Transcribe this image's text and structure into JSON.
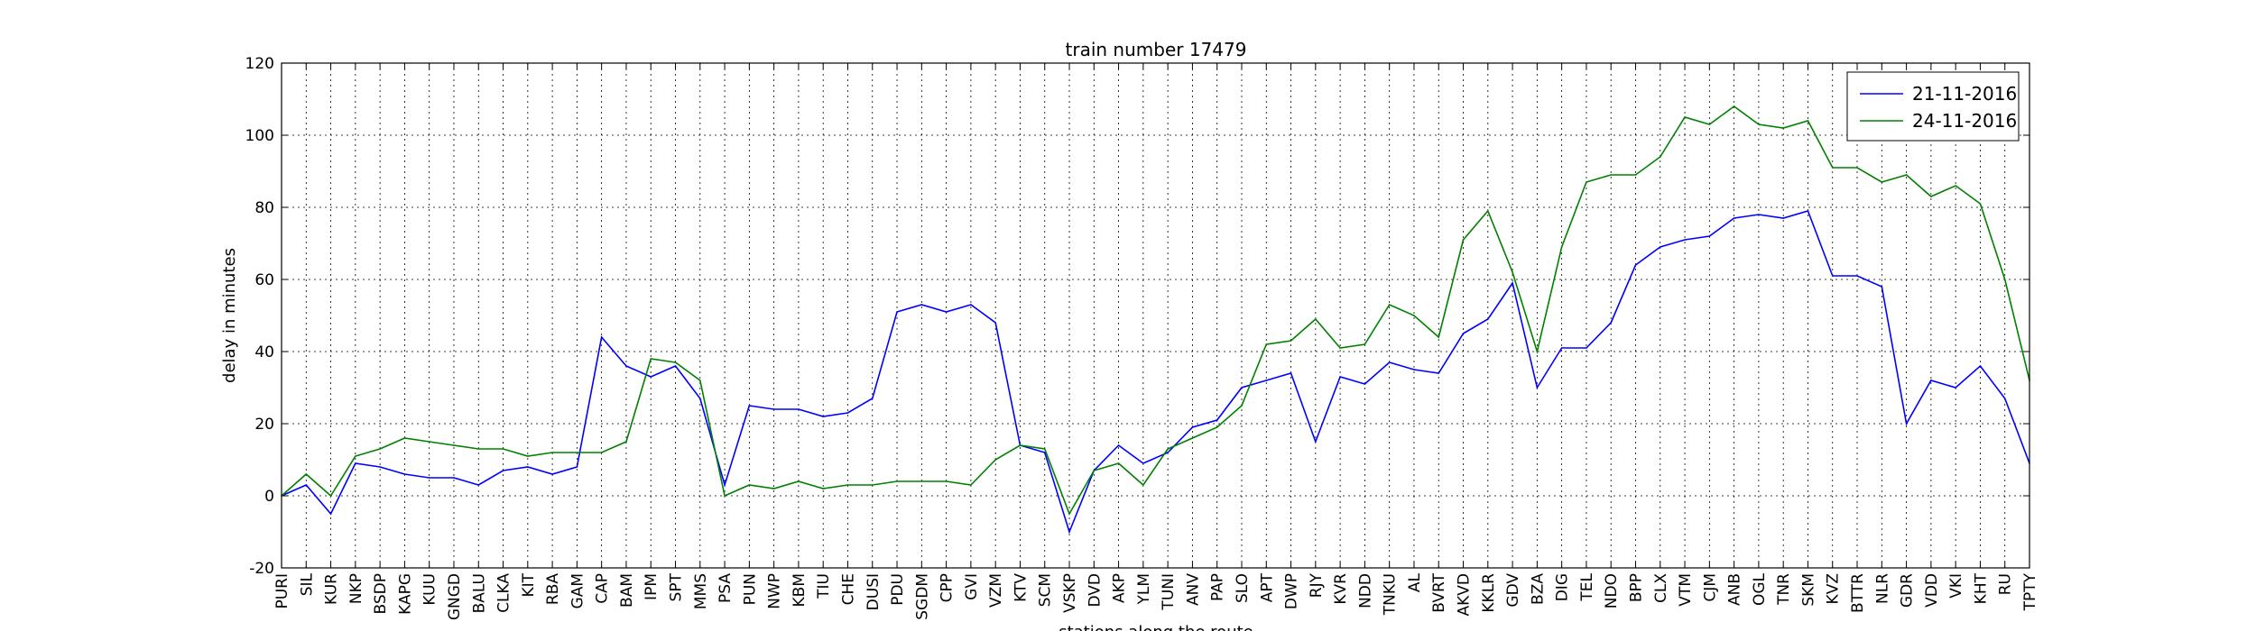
{
  "chart_data": {
    "type": "line",
    "title": "train number 17479",
    "xlabel": "stations along the route",
    "ylabel": "delay in minutes",
    "ylim": [
      -20,
      120
    ],
    "yticks": [
      -20,
      0,
      20,
      40,
      60,
      80,
      100,
      120
    ],
    "grid": true,
    "legend_position": "top-right",
    "categories": [
      "PURI",
      "SIL",
      "KUR",
      "NKP",
      "BSDP",
      "KAPG",
      "KUU",
      "GNGD",
      "BALU",
      "CLKA",
      "KIT",
      "RBA",
      "GAM",
      "CAP",
      "BAM",
      "IPM",
      "SPT",
      "MMS",
      "PSA",
      "PUN",
      "NWP",
      "KBM",
      "TIU",
      "CHE",
      "DUSI",
      "PDU",
      "SGDM",
      "CPP",
      "GVI",
      "VZM",
      "KTV",
      "SCM",
      "VSKP",
      "DVD",
      "AKP",
      "YLM",
      "TUNI",
      "ANV",
      "PAP",
      "SLO",
      "APT",
      "DWP",
      "RJY",
      "KVR",
      "NDD",
      "TNKU",
      "AL",
      "BVRT",
      "AKVD",
      "KKLR",
      "GDV",
      "BZA",
      "DIG",
      "TEL",
      "NDO",
      "BPP",
      "CLX",
      "VTM",
      "CJM",
      "ANB",
      "OGL",
      "TNR",
      "SKM",
      "KVZ",
      "BTTR",
      "NLR",
      "GDR",
      "VDD",
      "VKI",
      "KHT",
      "RU",
      "TPTY"
    ],
    "series": [
      {
        "name": "21-11-2016",
        "color": "#0000ff",
        "values": [
          0,
          3,
          -5,
          9,
          8,
          6,
          5,
          5,
          3,
          7,
          8,
          6,
          8,
          44,
          36,
          33,
          36,
          27,
          3,
          25,
          24,
          24,
          22,
          23,
          27,
          51,
          53,
          51,
          53,
          48,
          14,
          12,
          -10,
          7,
          14,
          9,
          12,
          19,
          21,
          30,
          32,
          34,
          15,
          33,
          31,
          37,
          35,
          34,
          45,
          49,
          59,
          30,
          41,
          41,
          48,
          64,
          69,
          71,
          72,
          77,
          78,
          77,
          79,
          61,
          61,
          58,
          20,
          32,
          30,
          36,
          27,
          9
        ]
      },
      {
        "name": "24-11-2016",
        "color": "#008000",
        "values": [
          0,
          6,
          0,
          11,
          13,
          16,
          15,
          14,
          13,
          13,
          11,
          12,
          12,
          12,
          15,
          38,
          37,
          32,
          0,
          3,
          2,
          4,
          2,
          3,
          3,
          4,
          4,
          4,
          3,
          10,
          14,
          13,
          -5,
          7,
          9,
          3,
          13,
          16,
          19,
          25,
          42,
          43,
          49,
          41,
          42,
          53,
          50,
          44,
          71,
          79,
          62,
          40,
          69,
          87,
          89,
          89,
          94,
          105,
          103,
          108,
          103,
          102,
          104,
          91,
          91,
          87,
          89,
          83,
          86,
          81,
          60,
          32
        ]
      }
    ]
  }
}
